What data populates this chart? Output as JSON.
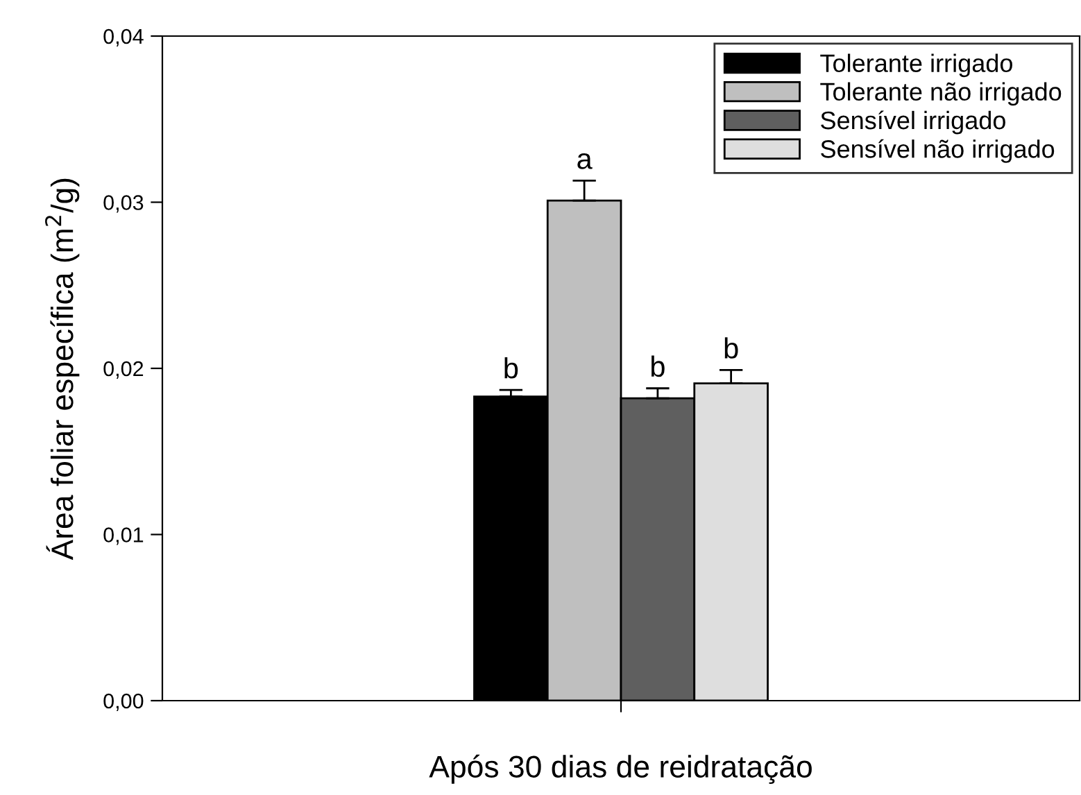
{
  "chart_data": {
    "type": "bar",
    "categories": [
      "Após 30 dias de reidratação"
    ],
    "ylabel": "Área foliar específica (m$^{2}$/g)",
    "series": [
      {
        "name": "Tolerante irrigado",
        "color": "#000000",
        "values": [
          0.0183
        ],
        "errors": [
          [
            0.0183,
            0.0187
          ]
        ],
        "value_labels": [
          "b"
        ]
      },
      {
        "name": "Tolerante não irrigado",
        "color": "#bfbfbf",
        "values": [
          0.0301
        ],
        "errors": [
          [
            0.0301,
            0.0313
          ]
        ],
        "value_labels": [
          "a"
        ]
      },
      {
        "name": "Sensível irrigado",
        "color": "#5f5f5f",
        "values": [
          0.0182
        ],
        "errors": [
          [
            0.0182,
            0.0188
          ]
        ],
        "value_labels": [
          "b"
        ]
      },
      {
        "name": "Sensível não irrigado",
        "color": "#dedede",
        "values": [
          0.0191
        ],
        "errors": [
          [
            0.0191,
            0.0199
          ]
        ],
        "value_labels": [
          "b"
        ]
      }
    ],
    "ylim": [
      0,
      0.04
    ],
    "yticks": [
      {
        "value": 0,
        "label": "0,00"
      },
      {
        "value": 0.01,
        "label": "0,01"
      },
      {
        "value": 0.02,
        "label": "0,02"
      },
      {
        "value": 0.03,
        "label": "0,03"
      },
      {
        "value": 0.04,
        "label": "0,04"
      }
    ],
    "grid": false,
    "legend": "top right"
  }
}
